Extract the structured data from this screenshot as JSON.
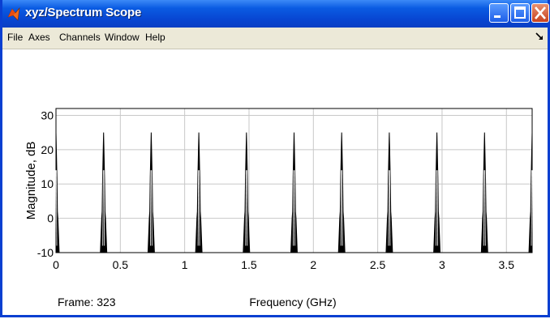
{
  "window": {
    "title": "xyz/Spectrum Scope"
  },
  "menu": {
    "items": [
      "File",
      "Axes",
      "Channels",
      "Window",
      "Help"
    ]
  },
  "icons": {
    "app": "matlab-icon",
    "dock": "dock-arrow-icon"
  },
  "status": {
    "frame_label": "Frame: 323"
  },
  "chart_data": {
    "type": "line",
    "xlabel": "Frequency (GHz)",
    "ylabel": "Magnitude, dB",
    "xlim": [
      0,
      3.7
    ],
    "ylim": [
      -10,
      32
    ],
    "x_ticks": [
      0,
      0.5,
      1,
      1.5,
      2,
      2.5,
      3,
      3.5
    ],
    "x_tick_labels": [
      "0",
      "0.5",
      "1",
      "1.5",
      "2",
      "2.5",
      "3",
      "3.5"
    ],
    "y_ticks": [
      -10,
      0,
      10,
      20,
      30
    ],
    "y_tick_labels": [
      "-10",
      "0",
      "10",
      "20",
      "30"
    ],
    "grid": true,
    "peaks": [
      {
        "x": 0.0,
        "y": 25
      },
      {
        "x": 0.37,
        "y": 25
      },
      {
        "x": 0.74,
        "y": 25
      },
      {
        "x": 1.11,
        "y": 25
      },
      {
        "x": 1.48,
        "y": 25
      },
      {
        "x": 1.85,
        "y": 25
      },
      {
        "x": 2.22,
        "y": 25
      },
      {
        "x": 2.59,
        "y": 25
      },
      {
        "x": 2.96,
        "y": 25
      },
      {
        "x": 3.33,
        "y": 25
      },
      {
        "x": 3.7,
        "y": 25
      }
    ],
    "peak_halfwidth": 0.025,
    "floor": -10,
    "colors": {
      "line": "#000000",
      "grid": "#c8c8c8"
    }
  }
}
